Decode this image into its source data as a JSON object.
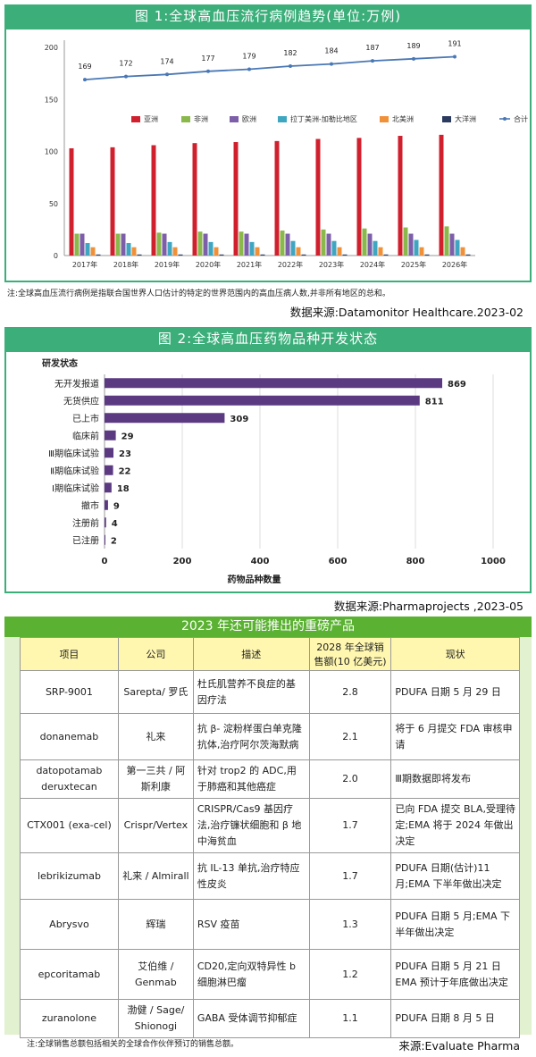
{
  "fig1": {
    "title": "图 1:全球高血压流行病例趋势(单位:万例)",
    "note": "注:全球高血压流行病例是指联合国世界人口估计的特定的世界范围内的高血压病人数,并非所有地区的总和。",
    "source": "数据来源:Datamonitor Healthcare.2023-02"
  },
  "fig2": {
    "title": "图 2:全球高血压药物品种开发状态",
    "source": "数据来源:Pharmaprojects ,2023-05"
  },
  "chart_data": [
    {
      "type": "bar",
      "title": "图 1:全球高血压流行病例趋势(单位:万例)",
      "categories": [
        "2017年",
        "2018年",
        "2019年",
        "2020年",
        "2021年",
        "2022年",
        "2023年",
        "2024年",
        "2025年",
        "2026年"
      ],
      "ylim": [
        0,
        200
      ],
      "yticks": [
        0,
        50,
        100,
        150,
        200
      ],
      "legend_position": "right, inside plot",
      "series": [
        {
          "name": "亚洲",
          "color": "#d0202e",
          "values": [
            103,
            104,
            106,
            108,
            109,
            110,
            112,
            113,
            115,
            116
          ]
        },
        {
          "name": "非洲",
          "color": "#8ab84a",
          "values": [
            21,
            21,
            22,
            23,
            23,
            24,
            25,
            26,
            27,
            28
          ]
        },
        {
          "name": "欧洲",
          "color": "#7d5ea8",
          "values": [
            21,
            21,
            21,
            21,
            21,
            21,
            21,
            21,
            21,
            21
          ]
        },
        {
          "name": "拉丁美洲-加勒比地区",
          "color": "#3ea6c0",
          "values": [
            12,
            12,
            13,
            13,
            13,
            14,
            14,
            14,
            15,
            15
          ]
        },
        {
          "name": "北美洲",
          "color": "#f0913a",
          "values": [
            8,
            8,
            8,
            8,
            8,
            8,
            8,
            8,
            8,
            8
          ]
        },
        {
          "name": "大洋洲",
          "color": "#2b3a5f",
          "values": [
            1,
            1,
            1,
            1,
            1,
            1,
            1,
            1,
            1,
            1
          ]
        }
      ],
      "line": {
        "name": "合计",
        "color": "#4a78b5",
        "values": [
          169,
          172,
          174,
          177,
          179,
          182,
          184,
          187,
          189,
          191
        ]
      }
    },
    {
      "type": "bar",
      "orientation": "horizontal",
      "title": "图 2:全球高血压药物品种开发状态",
      "ylabel": "研发状态",
      "xlabel": "药物品种数量",
      "xlim": [
        0,
        1000
      ],
      "xticks": [
        0,
        200,
        400,
        600,
        800,
        1000
      ],
      "color": "#5b3a82",
      "categories": [
        "无开发报道",
        "无货供应",
        "已上市",
        "临床前",
        "Ⅲ期临床试验",
        "Ⅱ期临床试验",
        "Ⅰ期临床试验",
        "撤市",
        "注册前",
        "已注册"
      ],
      "values": [
        869,
        811,
        309,
        29,
        23,
        22,
        18,
        9,
        4,
        2
      ]
    }
  ],
  "table": {
    "title": "2023 年还可能推出的重磅产品",
    "headers": [
      "项目",
      "公司",
      "描述",
      "2028 年全球销售额(10 亿美元)",
      "现状"
    ],
    "rows": [
      [
        "SRP-9001",
        "Sarepta/ 罗氏",
        "杜氏肌营养不良症的基因疗法",
        "2.8",
        "PDUFA 日期 5 月 29 日"
      ],
      [
        "donanemab",
        "礼来",
        "抗 β- 淀粉样蛋白单克隆抗体,治疗阿尔茨海默病",
        "2.1",
        "将于 6 月提交 FDA 审核申请"
      ],
      [
        "datopotamab deruxtecan",
        "第一三共 / 阿斯利康",
        "针对 trop2 的 ADC,用于肺癌和其他癌症",
        "2.0",
        "Ⅲ期数据即将发布"
      ],
      [
        "CTX001 (exa-cel)",
        "Crispr/Vertex",
        "CRISPR/Cas9 基因疗法,治疗镰状细胞和 β 地中海贫血",
        "1.7",
        "已向 FDA 提交 BLA,受理待定;EMA 将于 2024 年做出决定"
      ],
      [
        "lebrikizumab",
        "礼来 / Almirall",
        "抗 IL-13 单抗,治疗特应性皮炎",
        "1.7",
        "PDUFA 日期(估计)11 月;EMA 下半年做出决定"
      ],
      [
        "Abrysvo",
        "辉瑞",
        "RSV 疫苗",
        "1.3",
        "PDUFA 日期 5 月;EMA 下半年做出决定"
      ],
      [
        "epcoritamab",
        "艾伯维 / Genmab",
        "CD20,定向双特异性 b 细胞淋巴瘤",
        "1.2",
        "PDUFA 日期 5 月 21 日 EMA 预计于年底做出决定"
      ],
      [
        "zuranolone",
        "渤健 / Sage/ Shionogi",
        "GABA 受体调节抑郁症",
        "1.1",
        "PDUFA 日期 8 月 5 日"
      ]
    ],
    "note": "注:全球销售总额包括相关的全球合作伙伴预订的销售总额。",
    "source": "来源:Evaluate Pharma"
  }
}
